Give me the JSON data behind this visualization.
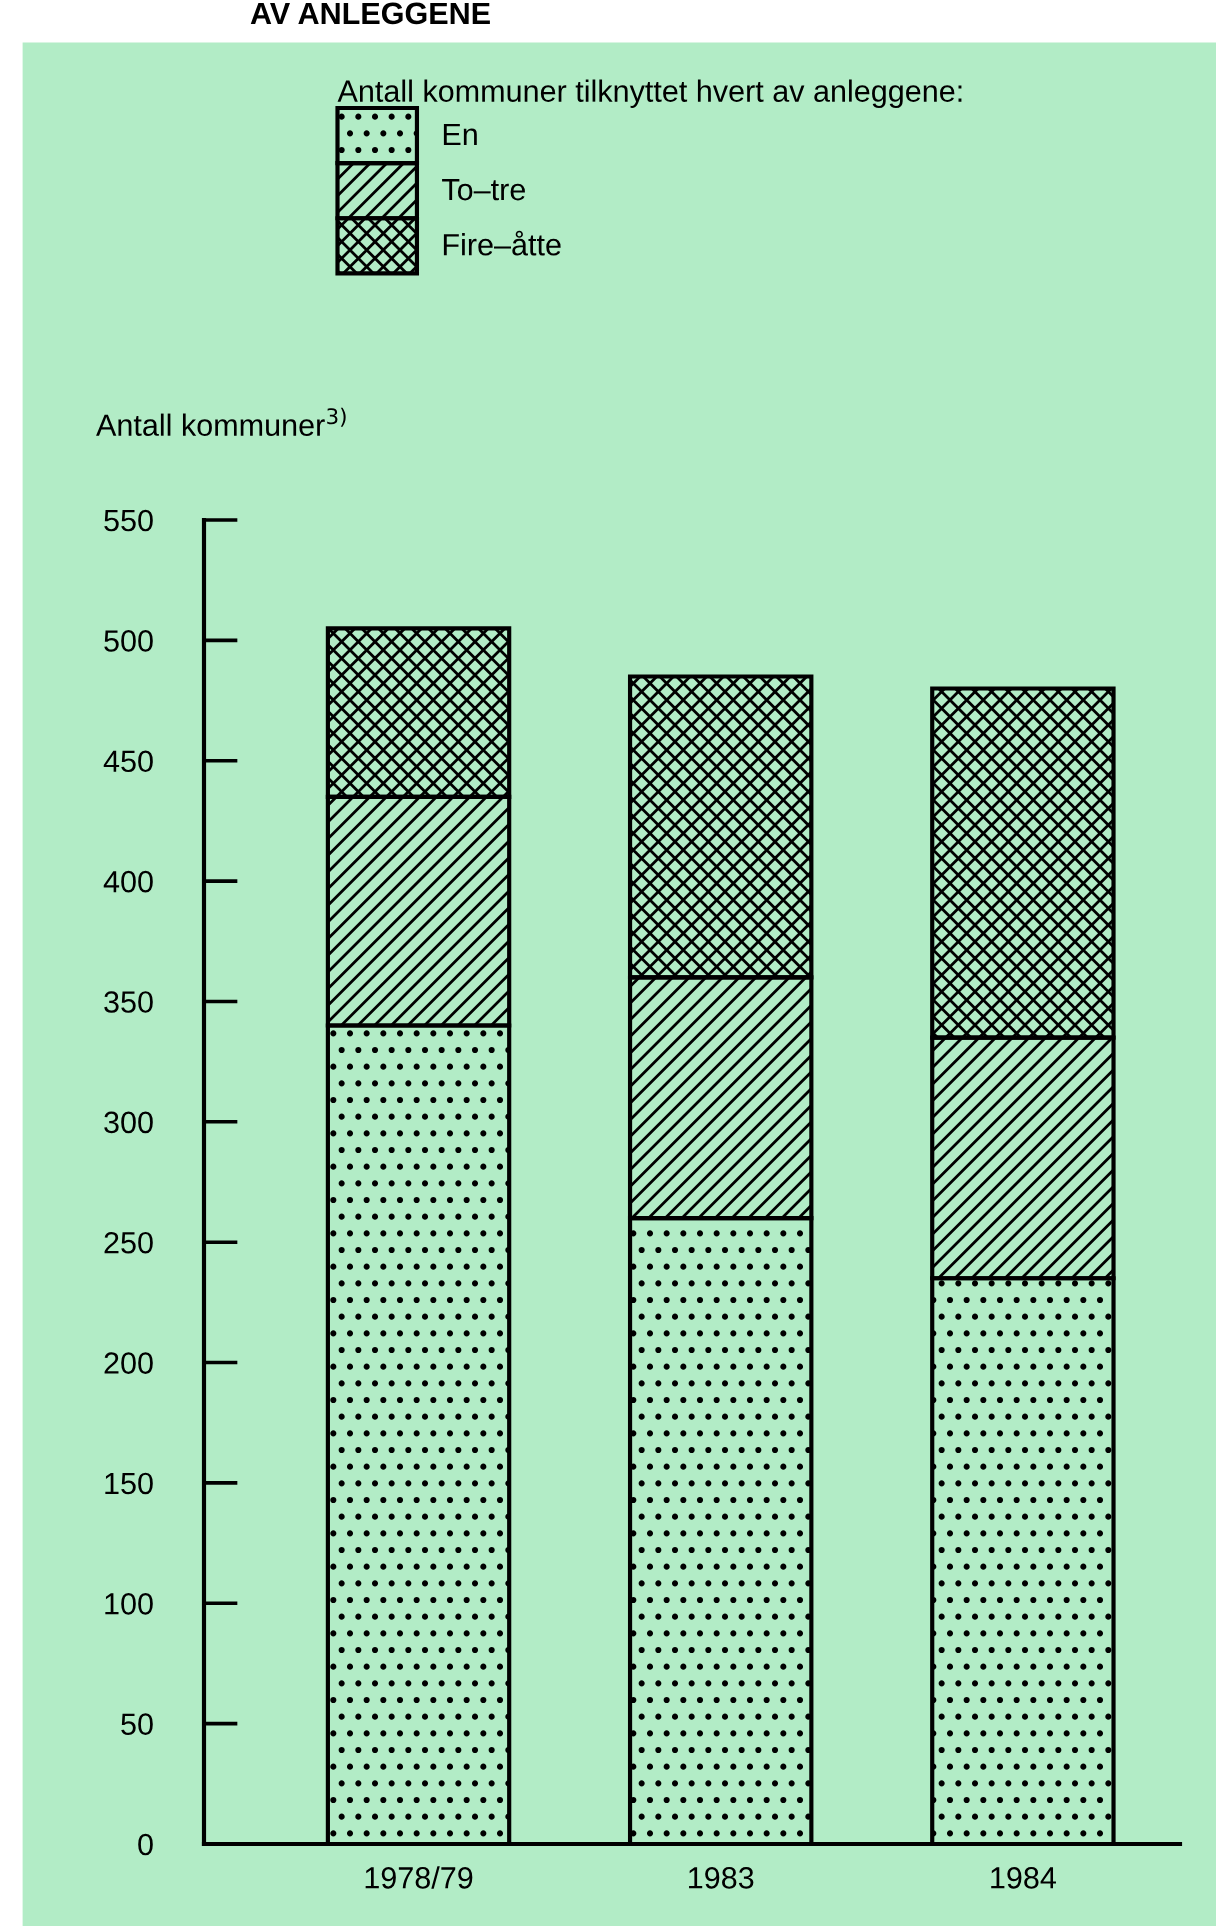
{
  "chart_data": {
    "type": "bar",
    "stacked": true,
    "title": "AV ANLEGGENE",
    "ylabel": "Antall kommuner$^{3)}$",
    "legend_title": "Antall kommuner tilknyttet hvert av anleggene:",
    "legend": "top",
    "grid": false,
    "categories": [
      "1978/79",
      "1983",
      "1984"
    ],
    "series": [
      {
        "name": "En",
        "color": "#000000",
        "values": [
          340,
          260,
          235
        ]
      },
      {
        "name": "To–tre",
        "color": "#000000",
        "values": [
          95,
          100,
          100
        ]
      },
      {
        "name": "Fire–åtte",
        "color": "#000000",
        "values": [
          70,
          125,
          145
        ]
      }
    ],
    "ylim": [
      0,
      550
    ],
    "yticks": [
      0,
      50,
      100,
      150,
      200,
      250,
      300,
      350,
      400,
      450,
      500,
      550
    ]
  }
}
